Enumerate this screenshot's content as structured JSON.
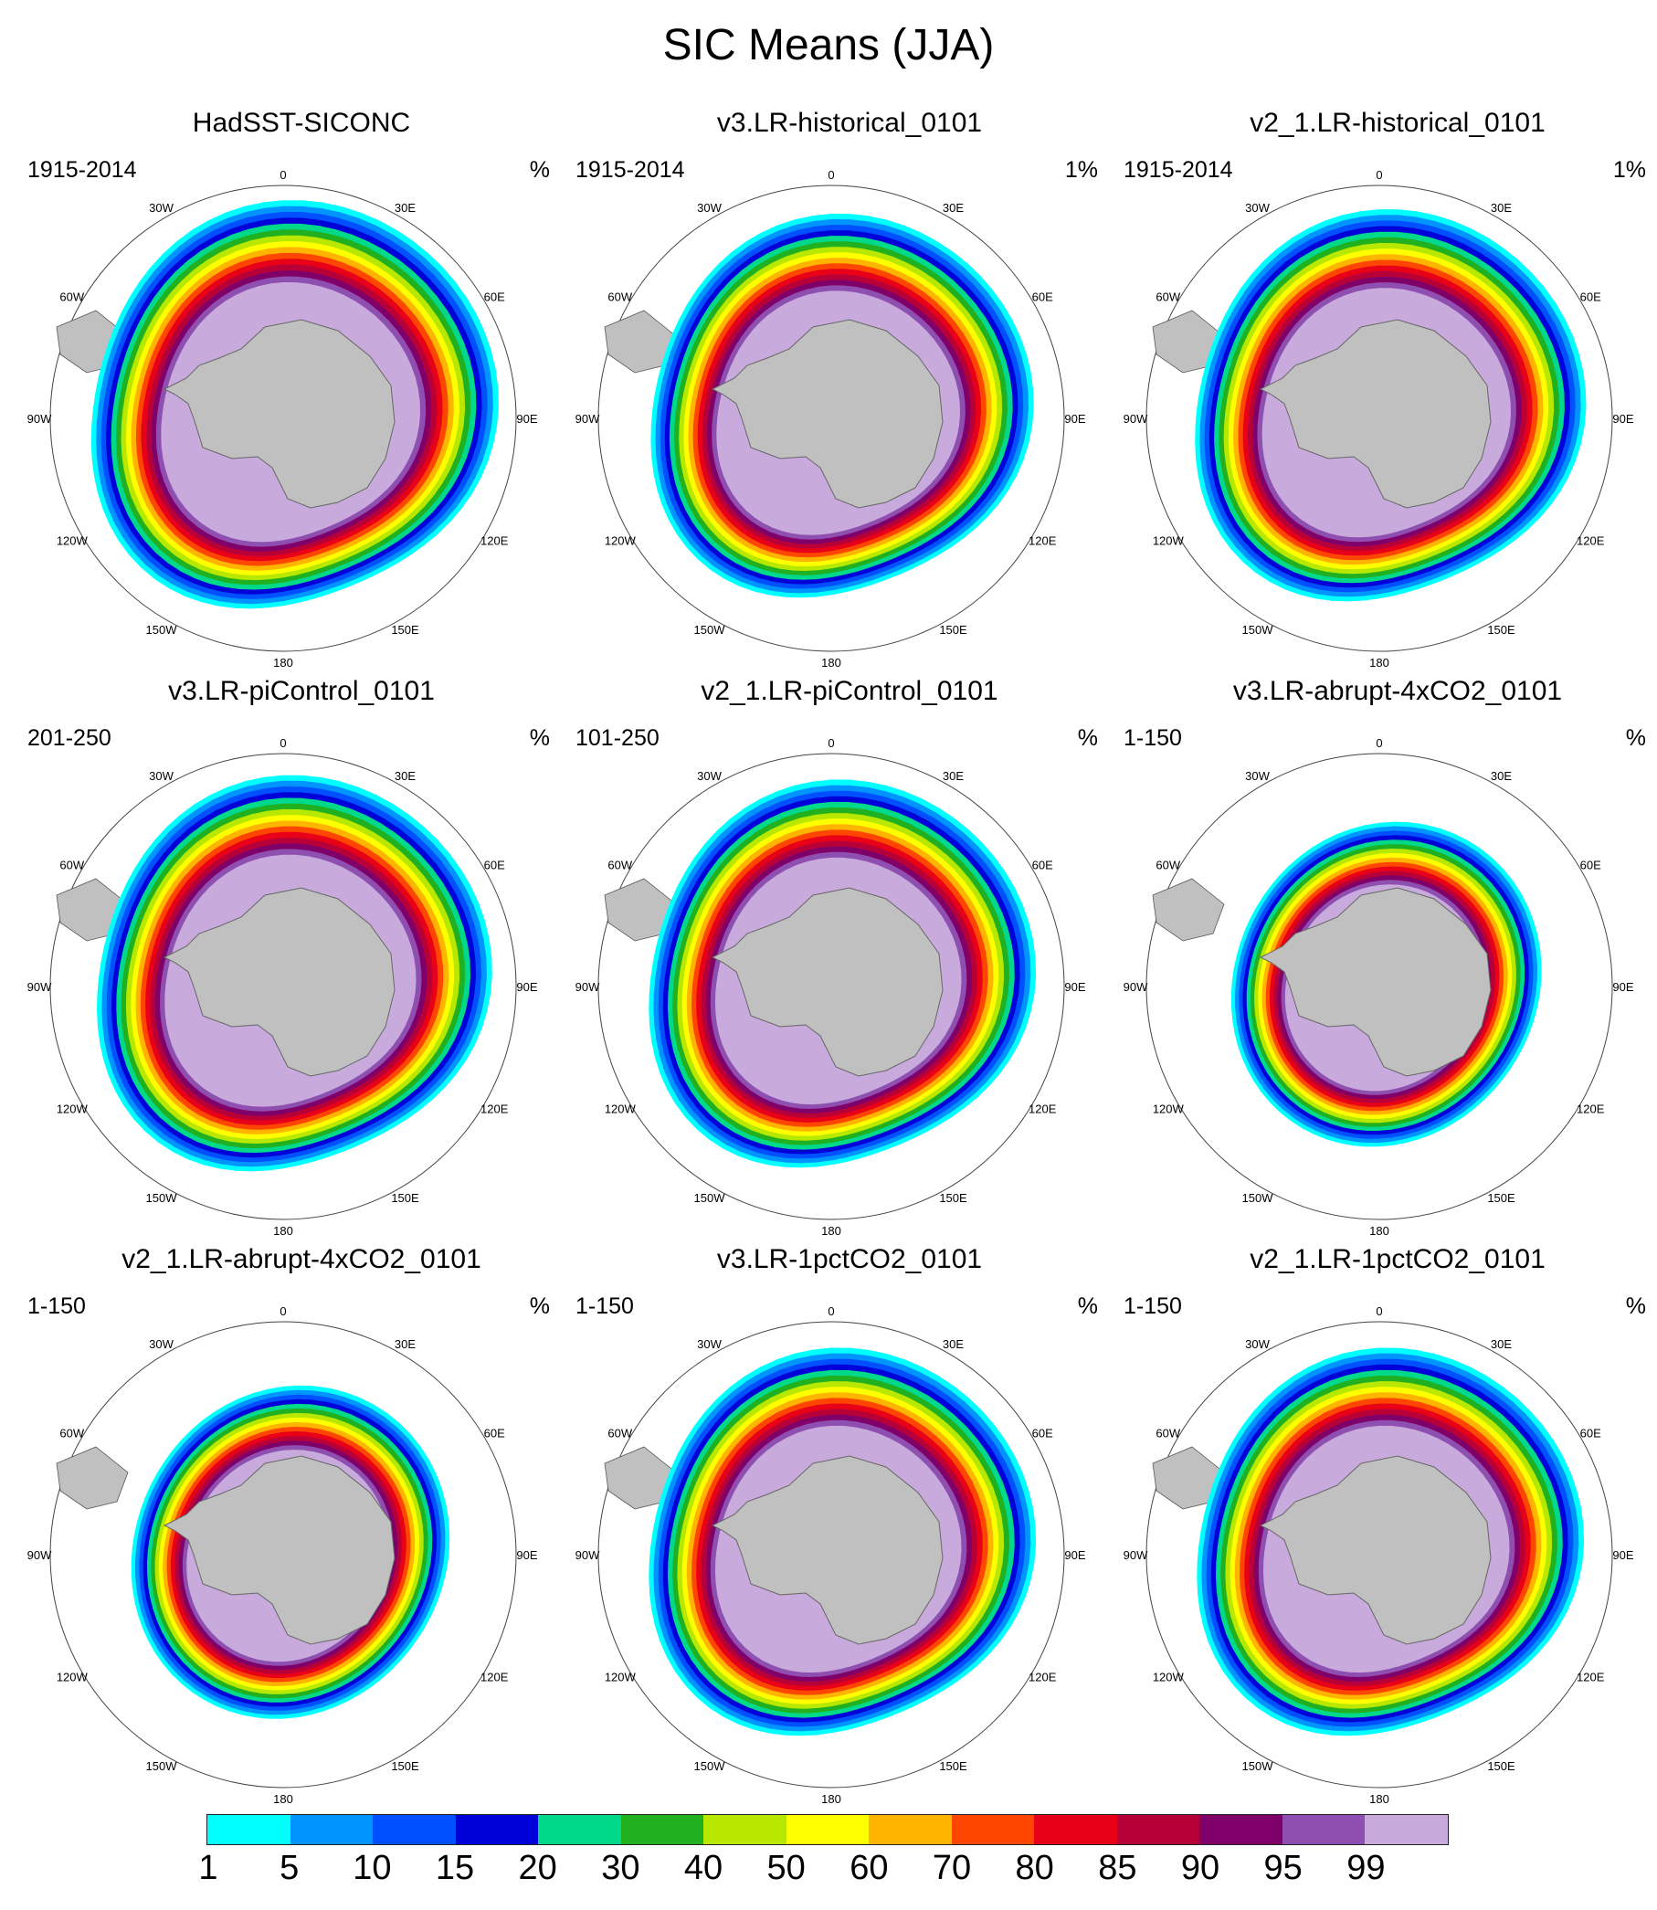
{
  "title": "SIC Means (JJA)",
  "colors": {
    "land": "#c0c0c0",
    "levels": [
      "#00ffff",
      "#0094ff",
      "#0050ff",
      "#0000d8",
      "#00d98a",
      "#20b020",
      "#b8e800",
      "#ffff00",
      "#ffb400",
      "#ff4600",
      "#e80018",
      "#b80038",
      "#80006a",
      "#8e4fb0",
      "#c8abdc"
    ]
  },
  "colorbar": {
    "labels": [
      "1",
      "5",
      "10",
      "15",
      "20",
      "30",
      "40",
      "50",
      "60",
      "70",
      "80",
      "85",
      "90",
      "95",
      "99"
    ]
  },
  "grid_labels": [
    "0",
    "30E",
    "60E",
    "90E",
    "120E",
    "150E",
    "180",
    "150W",
    "120W",
    "90W",
    "60W",
    "30W"
  ],
  "panels": [
    {
      "title": "HadSST-SICONC",
      "period": "1915-2014",
      "units": "%",
      "extent": 1.0,
      "shape": "obs"
    },
    {
      "title": "v3.LR-historical_0101",
      "period": "1915-2014",
      "units": "1%",
      "extent": 0.94,
      "shape": "model"
    },
    {
      "title": "v2_1.LR-historical_0101",
      "period": "1915-2014",
      "units": "1%",
      "extent": 0.96,
      "shape": "model"
    },
    {
      "title": "v3.LR-piControl_0101",
      "period": "201-250",
      "units": "%",
      "extent": 0.97,
      "shape": "model"
    },
    {
      "title": "v2_1.LR-piControl_0101",
      "period": "101-250",
      "units": "%",
      "extent": 0.95,
      "shape": "model"
    },
    {
      "title": "v3.LR-abrupt-4xCO2_0101",
      "period": "1-150",
      "units": "%",
      "extent": 0.78,
      "shape": "warm"
    },
    {
      "title": "v2_1.LR-abrupt-4xCO2_0101",
      "period": "1-150",
      "units": "%",
      "extent": 0.8,
      "shape": "warm"
    },
    {
      "title": "v3.LR-1pctCO2_0101",
      "period": "1-150",
      "units": "%",
      "extent": 0.95,
      "shape": "model"
    },
    {
      "title": "v2_1.LR-1pctCO2_0101",
      "period": "1-150",
      "units": "%",
      "extent": 0.95,
      "shape": "model"
    }
  ]
}
